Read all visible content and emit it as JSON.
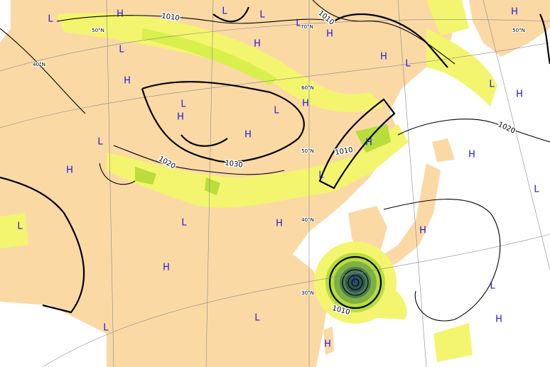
{
  "map": {
    "pressure_centers": [
      "H",
      "H",
      "H",
      "H",
      "H",
      "H",
      "H",
      "H",
      "H",
      "H",
      "H",
      "H",
      "H",
      "H",
      "H",
      "H",
      "H",
      "H",
      "L",
      "L",
      "L",
      "L",
      "L",
      "L",
      "L",
      "L",
      "L",
      "L",
      "L",
      "L",
      "L",
      "L",
      "L",
      "L",
      "L",
      "L"
    ],
    "isobar_labels": [
      "1010",
      "1010",
      "1020",
      "1030",
      "1010",
      "1020",
      "1010"
    ],
    "latitude_labels": [
      "50°N",
      "40°N",
      "70°N",
      "60°N",
      "50°N",
      "40°N",
      "30°N",
      "50°N"
    ]
  }
}
